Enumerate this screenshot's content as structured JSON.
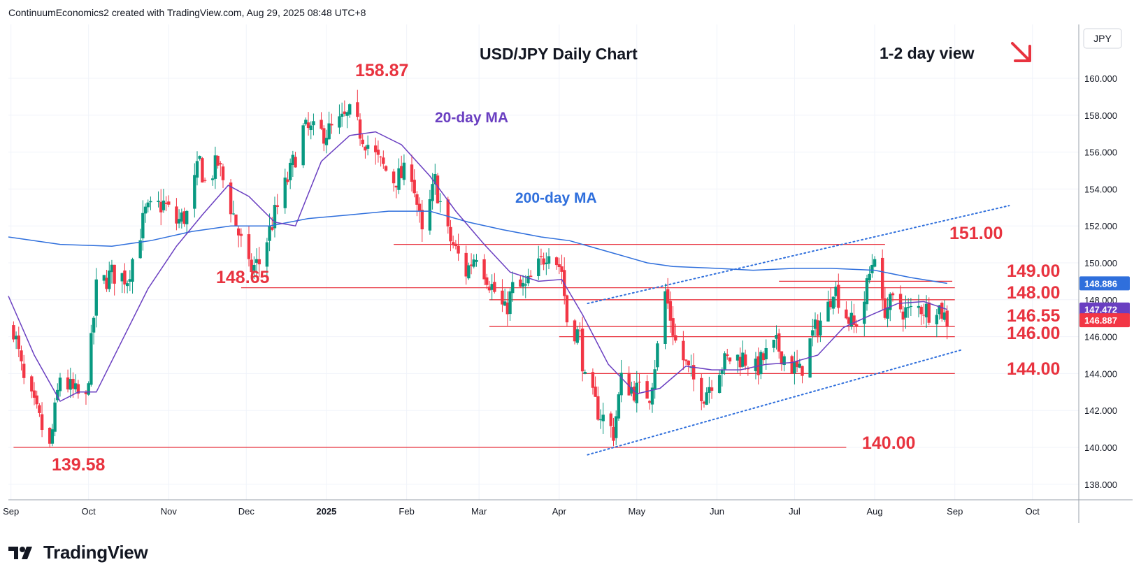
{
  "header": {
    "text": "ContinuumEconomics2 created with TradingView.com, Aug 29, 2025 08:48 UTC+8"
  },
  "footer": {
    "brand": "TradingView"
  },
  "colors": {
    "up": "#089981",
    "down": "#f23645",
    "ma20": "#6a3fc1",
    "ma200": "#2f6fdc",
    "level": "#e8333f",
    "channel": "#2f6fdc"
  },
  "chart_data": {
    "type": "candlestick",
    "title": "USD/JPY Daily Chart",
    "subtitle": "1-2 day view",
    "currency": "JPY",
    "ylim": [
      137,
      162
    ],
    "y_ticks": [
      "138.000",
      "140.000",
      "142.000",
      "144.000",
      "146.000",
      "148.000",
      "150.000",
      "152.000",
      "154.000",
      "156.000",
      "158.000",
      "160.000"
    ],
    "x_ticks": [
      "Sep",
      "Oct",
      "Nov",
      "Dec",
      "2025",
      "Feb",
      "Mar",
      "Apr",
      "May",
      "Jun",
      "Jul",
      "Aug",
      "Sep",
      "Oct"
    ],
    "x_ticks_bold": [
      "2025"
    ],
    "price_labels": [
      {
        "value": "148.886",
        "color": "#2f6fdc"
      },
      {
        "value": "147.472",
        "color": "#6a3fc1"
      },
      {
        "value": "146.887",
        "color": "#f23645"
      }
    ],
    "price_path": [
      [
        "2024-09-02",
        146.5
      ],
      [
        "2024-09-06",
        143.5
      ],
      [
        "2024-09-11",
        141.8
      ],
      [
        "2024-09-16",
        139.9
      ],
      [
        "2024-09-20",
        143.9
      ],
      [
        "2024-09-25",
        143.0
      ],
      [
        "2024-09-30",
        142.5
      ],
      [
        "2024-10-04",
        148.6
      ],
      [
        "2024-10-10",
        149.4
      ],
      [
        "2024-10-16",
        149.2
      ],
      [
        "2024-10-23",
        152.7
      ],
      [
        "2024-10-30",
        153.2
      ],
      [
        "2024-11-04",
        152.2
      ],
      [
        "2024-11-08",
        152.6
      ],
      [
        "2024-11-13",
        155.5
      ],
      [
        "2024-11-15",
        154.3
      ],
      [
        "2024-11-20",
        155.4
      ],
      [
        "2024-11-26",
        152.6
      ],
      [
        "2024-12-02",
        149.6
      ],
      [
        "2024-12-06",
        150.0
      ],
      [
        "2024-12-12",
        152.6
      ],
      [
        "2024-12-18",
        154.9
      ],
      [
        "2024-12-23",
        157.2
      ],
      [
        "2024-12-30",
        157.0
      ],
      [
        "2025-01-03",
        157.2
      ],
      [
        "2025-01-10",
        158.0
      ],
      [
        "2025-01-15",
        156.9
      ],
      [
        "2025-01-21",
        155.5
      ],
      [
        "2025-01-27",
        154.5
      ],
      [
        "2025-02-03",
        155.0
      ],
      [
        "2025-02-07",
        151.4
      ],
      [
        "2025-02-12",
        154.4
      ],
      [
        "2025-02-17",
        151.5
      ],
      [
        "2025-02-24",
        149.5
      ],
      [
        "2025-02-28",
        150.6
      ],
      [
        "2025-03-05",
        149.0
      ],
      [
        "2025-03-11",
        147.3
      ],
      [
        "2025-03-14",
        148.6
      ],
      [
        "2025-03-19",
        148.6
      ],
      [
        "2025-03-25",
        150.0
      ],
      [
        "2025-03-28",
        150.9
      ],
      [
        "2025-04-02",
        149.6
      ],
      [
        "2025-04-04",
        146.9
      ],
      [
        "2025-04-09",
        146.0
      ],
      [
        "2025-04-11",
        143.5
      ],
      [
        "2025-04-16",
        142.0
      ],
      [
        "2025-04-22",
        140.8
      ],
      [
        "2025-04-25",
        143.6
      ],
      [
        "2025-04-30",
        143.1
      ],
      [
        "2025-05-06",
        142.9
      ],
      [
        "2025-05-09",
        145.4
      ],
      [
        "2025-05-12",
        148.4
      ],
      [
        "2025-05-16",
        145.7
      ],
      [
        "2025-05-22",
        143.8
      ],
      [
        "2025-05-27",
        142.9
      ],
      [
        "2025-06-02",
        144.4
      ],
      [
        "2025-06-06",
        144.8
      ],
      [
        "2025-06-11",
        144.9
      ],
      [
        "2025-06-16",
        144.2
      ],
      [
        "2025-06-20",
        145.0
      ],
      [
        "2025-06-24",
        145.5
      ],
      [
        "2025-06-30",
        144.4
      ],
      [
        "2025-07-03",
        144.0
      ],
      [
        "2025-07-08",
        146.1
      ],
      [
        "2025-07-14",
        147.6
      ],
      [
        "2025-07-16",
        148.8
      ],
      [
        "2025-07-21",
        147.2
      ],
      [
        "2025-07-24",
        146.5
      ],
      [
        "2025-07-28",
        148.0
      ],
      [
        "2025-08-01",
        150.7
      ],
      [
        "2025-08-04",
        147.5
      ],
      [
        "2025-08-08",
        147.8
      ],
      [
        "2025-08-14",
        147.3
      ],
      [
        "2025-08-19",
        147.6
      ],
      [
        "2025-08-22",
        147.4
      ],
      [
        "2025-08-25",
        147.8
      ],
      [
        "2025-08-29",
        146.9
      ]
    ],
    "ma20": [
      [
        "2024-08-31",
        148.2
      ],
      [
        "2024-09-10",
        145.0
      ],
      [
        "2024-09-20",
        142.5
      ],
      [
        "2024-09-27",
        143.0
      ],
      [
        "2024-10-04",
        143.0
      ],
      [
        "2024-10-14",
        145.8
      ],
      [
        "2024-10-24",
        148.6
      ],
      [
        "2024-11-04",
        150.9
      ],
      [
        "2024-11-14",
        152.6
      ],
      [
        "2024-11-24",
        154.2
      ],
      [
        "2024-12-02",
        153.6
      ],
      [
        "2024-12-12",
        152.2
      ],
      [
        "2024-12-20",
        152.0
      ],
      [
        "2024-12-30",
        155.5
      ],
      [
        "2025-01-10",
        156.9
      ],
      [
        "2025-01-20",
        157.1
      ],
      [
        "2025-01-30",
        156.4
      ],
      [
        "2025-02-10",
        154.7
      ],
      [
        "2025-02-20",
        152.8
      ],
      [
        "2025-03-03",
        151.0
      ],
      [
        "2025-03-13",
        149.5
      ],
      [
        "2025-03-24",
        149.0
      ],
      [
        "2025-04-02",
        149.1
      ],
      [
        "2025-04-10",
        147.2
      ],
      [
        "2025-04-20",
        144.5
      ],
      [
        "2025-05-01",
        142.9
      ],
      [
        "2025-05-10",
        143.2
      ],
      [
        "2025-05-20",
        144.4
      ],
      [
        "2025-05-30",
        144.2
      ],
      [
        "2025-06-10",
        144.2
      ],
      [
        "2025-06-20",
        144.5
      ],
      [
        "2025-06-30",
        144.6
      ],
      [
        "2025-07-10",
        145.0
      ],
      [
        "2025-07-20",
        146.5
      ],
      [
        "2025-07-31",
        147.2
      ],
      [
        "2025-08-10",
        147.8
      ],
      [
        "2025-08-20",
        147.9
      ],
      [
        "2025-08-29",
        147.472
      ]
    ],
    "ma200": [
      [
        "2024-08-31",
        151.4
      ],
      [
        "2024-09-20",
        151.0
      ],
      [
        "2024-10-10",
        150.9
      ],
      [
        "2024-10-25",
        151.2
      ],
      [
        "2024-11-10",
        151.7
      ],
      [
        "2024-11-25",
        152.0
      ],
      [
        "2024-12-10",
        152.0
      ],
      [
        "2024-12-25",
        152.4
      ],
      [
        "2025-01-10",
        152.6
      ],
      [
        "2025-01-25",
        152.8
      ],
      [
        "2025-02-10",
        152.8
      ],
      [
        "2025-02-25",
        152.2
      ],
      [
        "2025-03-10",
        151.8
      ],
      [
        "2025-03-25",
        151.4
      ],
      [
        "2025-04-05",
        151.2
      ],
      [
        "2025-04-15",
        150.8
      ],
      [
        "2025-04-25",
        150.4
      ],
      [
        "2025-05-05",
        150.0
      ],
      [
        "2025-05-15",
        149.8
      ],
      [
        "2025-06-01",
        149.7
      ],
      [
        "2025-06-15",
        149.6
      ],
      [
        "2025-07-01",
        149.7
      ],
      [
        "2025-07-15",
        149.7
      ],
      [
        "2025-08-01",
        149.6
      ],
      [
        "2025-08-15",
        149.2
      ],
      [
        "2025-08-29",
        148.886
      ]
    ],
    "channel_upper": [
      [
        "2025-04-12",
        147.8
      ],
      [
        "2025-09-22",
        153.1
      ]
    ],
    "channel_lower": [
      [
        "2025-04-12",
        139.6
      ],
      [
        "2025-09-04",
        145.3
      ]
    ],
    "levels": [
      {
        "label": "151.00",
        "value": 151.0,
        "from": "2025-01-27",
        "to": "2025-08-05"
      },
      {
        "label": "149.00",
        "value": 149.0,
        "from": "2025-06-25",
        "to": "2025-08-31"
      },
      {
        "value": 148.65,
        "from": "2024-11-29",
        "to": "2025-09-01"
      },
      {
        "label": "148.00",
        "value": 148.0,
        "from": "2025-03-05",
        "to": "2025-09-01"
      },
      {
        "label": "146.55",
        "value": 146.55,
        "from": "2025-03-05",
        "to": "2025-09-01"
      },
      {
        "label": "146.00",
        "value": 146.0,
        "from": "2025-04-01",
        "to": "2025-09-01"
      },
      {
        "label": "144.00",
        "value": 144.0,
        "from": "2025-04-10",
        "to": "2025-09-01"
      },
      {
        "value": 140.0,
        "from": "2024-09-02",
        "to": "2025-07-21"
      }
    ],
    "annotations": {
      "high": "158.87",
      "low": "139.58",
      "level_14865": "148.65",
      "level_140": "140.00",
      "ma20_label": "20-day MA",
      "ma200_label": "200-day MA"
    }
  }
}
